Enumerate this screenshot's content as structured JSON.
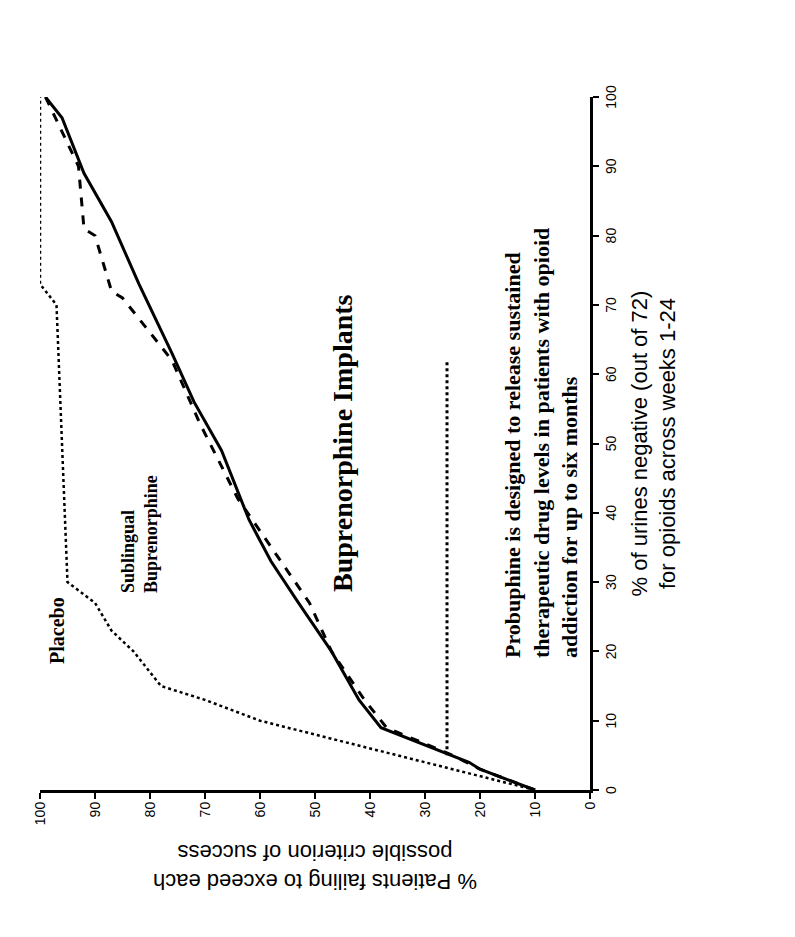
{
  "chart_data": {
    "type": "line",
    "x_label": [
      "% of urines negative (out of 72)",
      "for opioids across weeks 1-24"
    ],
    "y_label": [
      "% Patients failing to exceed each",
      "possible criterion of success"
    ],
    "annotations": [
      "Probuphine is designed to release sustained",
      "therapeutic drug levels in patients with opioid",
      "addiction for up to six months"
    ],
    "xlim": [
      0,
      100
    ],
    "xticks": [
      0,
      10,
      20,
      30,
      40,
      50,
      60,
      70,
      80,
      90,
      100
    ],
    "ylim": [
      0,
      100
    ],
    "yticks": [
      0,
      10,
      20,
      30,
      40,
      50,
      60,
      70,
      80,
      90,
      100
    ],
    "grid": false,
    "series": [
      {
        "name": "Placebo",
        "color": "#000000",
        "line_style": "dotted",
        "x": [
          0,
          2,
          4,
          6,
          8,
          10,
          13,
          15,
          17,
          20,
          23,
          27,
          30,
          50,
          70,
          73,
          100
        ],
        "values": [
          10,
          20,
          30,
          40,
          50,
          60,
          70,
          78,
          80,
          83,
          87,
          90,
          95,
          96,
          97,
          100,
          100
        ]
      },
      {
        "name": "Sublingual Buprenorphine",
        "color": "#000000",
        "line_style": "dashed",
        "x": [
          0,
          3,
          5,
          9,
          13,
          20,
          27,
          35,
          42,
          53,
          62,
          66,
          71,
          72,
          80,
          81,
          90,
          100
        ],
        "values": [
          10,
          20,
          25,
          37,
          41,
          47,
          51,
          58,
          64,
          71,
          76,
          80,
          85,
          87,
          90,
          92,
          93,
          99
        ]
      },
      {
        "name": "Buprenorphine Implants",
        "color": "#000000",
        "line_style": "solid",
        "x": [
          0,
          3,
          4,
          9,
          13,
          20,
          27,
          33,
          39,
          49,
          56,
          63,
          73,
          82,
          89,
          97,
          100
        ],
        "values": [
          10,
          20,
          22,
          38,
          42,
          47,
          53,
          58,
          62,
          67,
          72,
          76,
          82,
          87,
          92,
          96,
          99
        ]
      }
    ],
    "reference_line": {
      "x": [
        5,
        62
      ],
      "values": [
        26,
        26
      ],
      "line_style": "dotted",
      "color": "#000000"
    }
  }
}
